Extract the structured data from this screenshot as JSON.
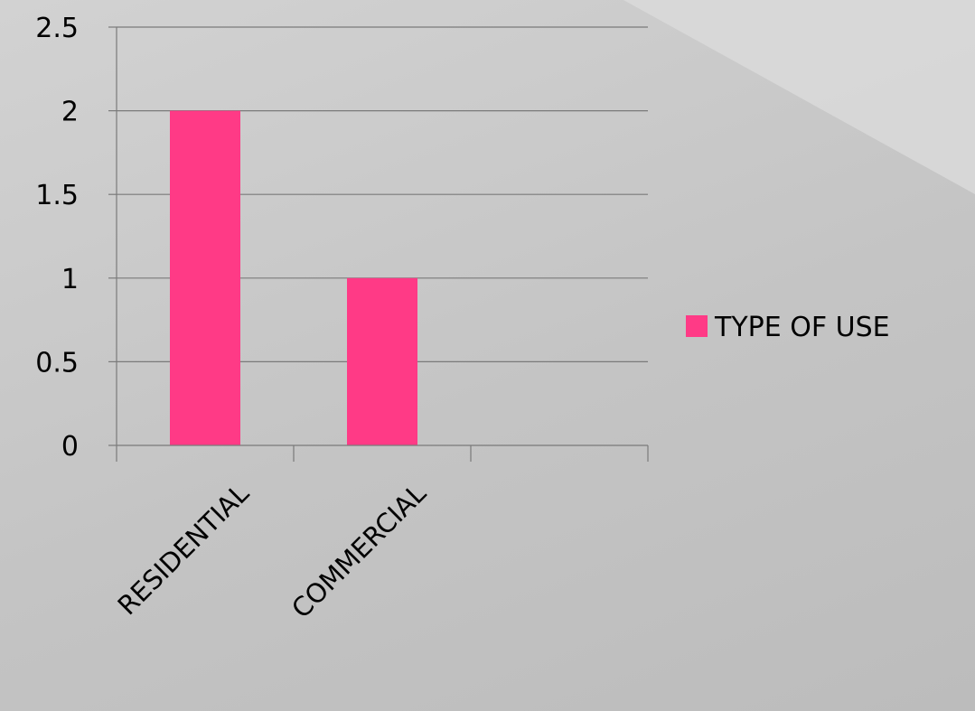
{
  "chart_data": {
    "type": "bar",
    "categories": [
      "RESIDENTIAL",
      "COMMERCIAL",
      ""
    ],
    "series": [
      {
        "name": "TYPE OF USE",
        "values": [
          2,
          1,
          null
        ],
        "color": "#ff3a86"
      }
    ],
    "title": "",
    "xlabel": "",
    "ylabel": "",
    "ylim": [
      0,
      2.5
    ],
    "yticks": [
      "0",
      "0.5",
      "1",
      "1.5",
      "2",
      "2.5"
    ],
    "grid": true,
    "legend": "right"
  },
  "colors": {
    "background": "#c8c8c8",
    "gridline": "#7a7a7a",
    "bar": "#ff3a86"
  }
}
